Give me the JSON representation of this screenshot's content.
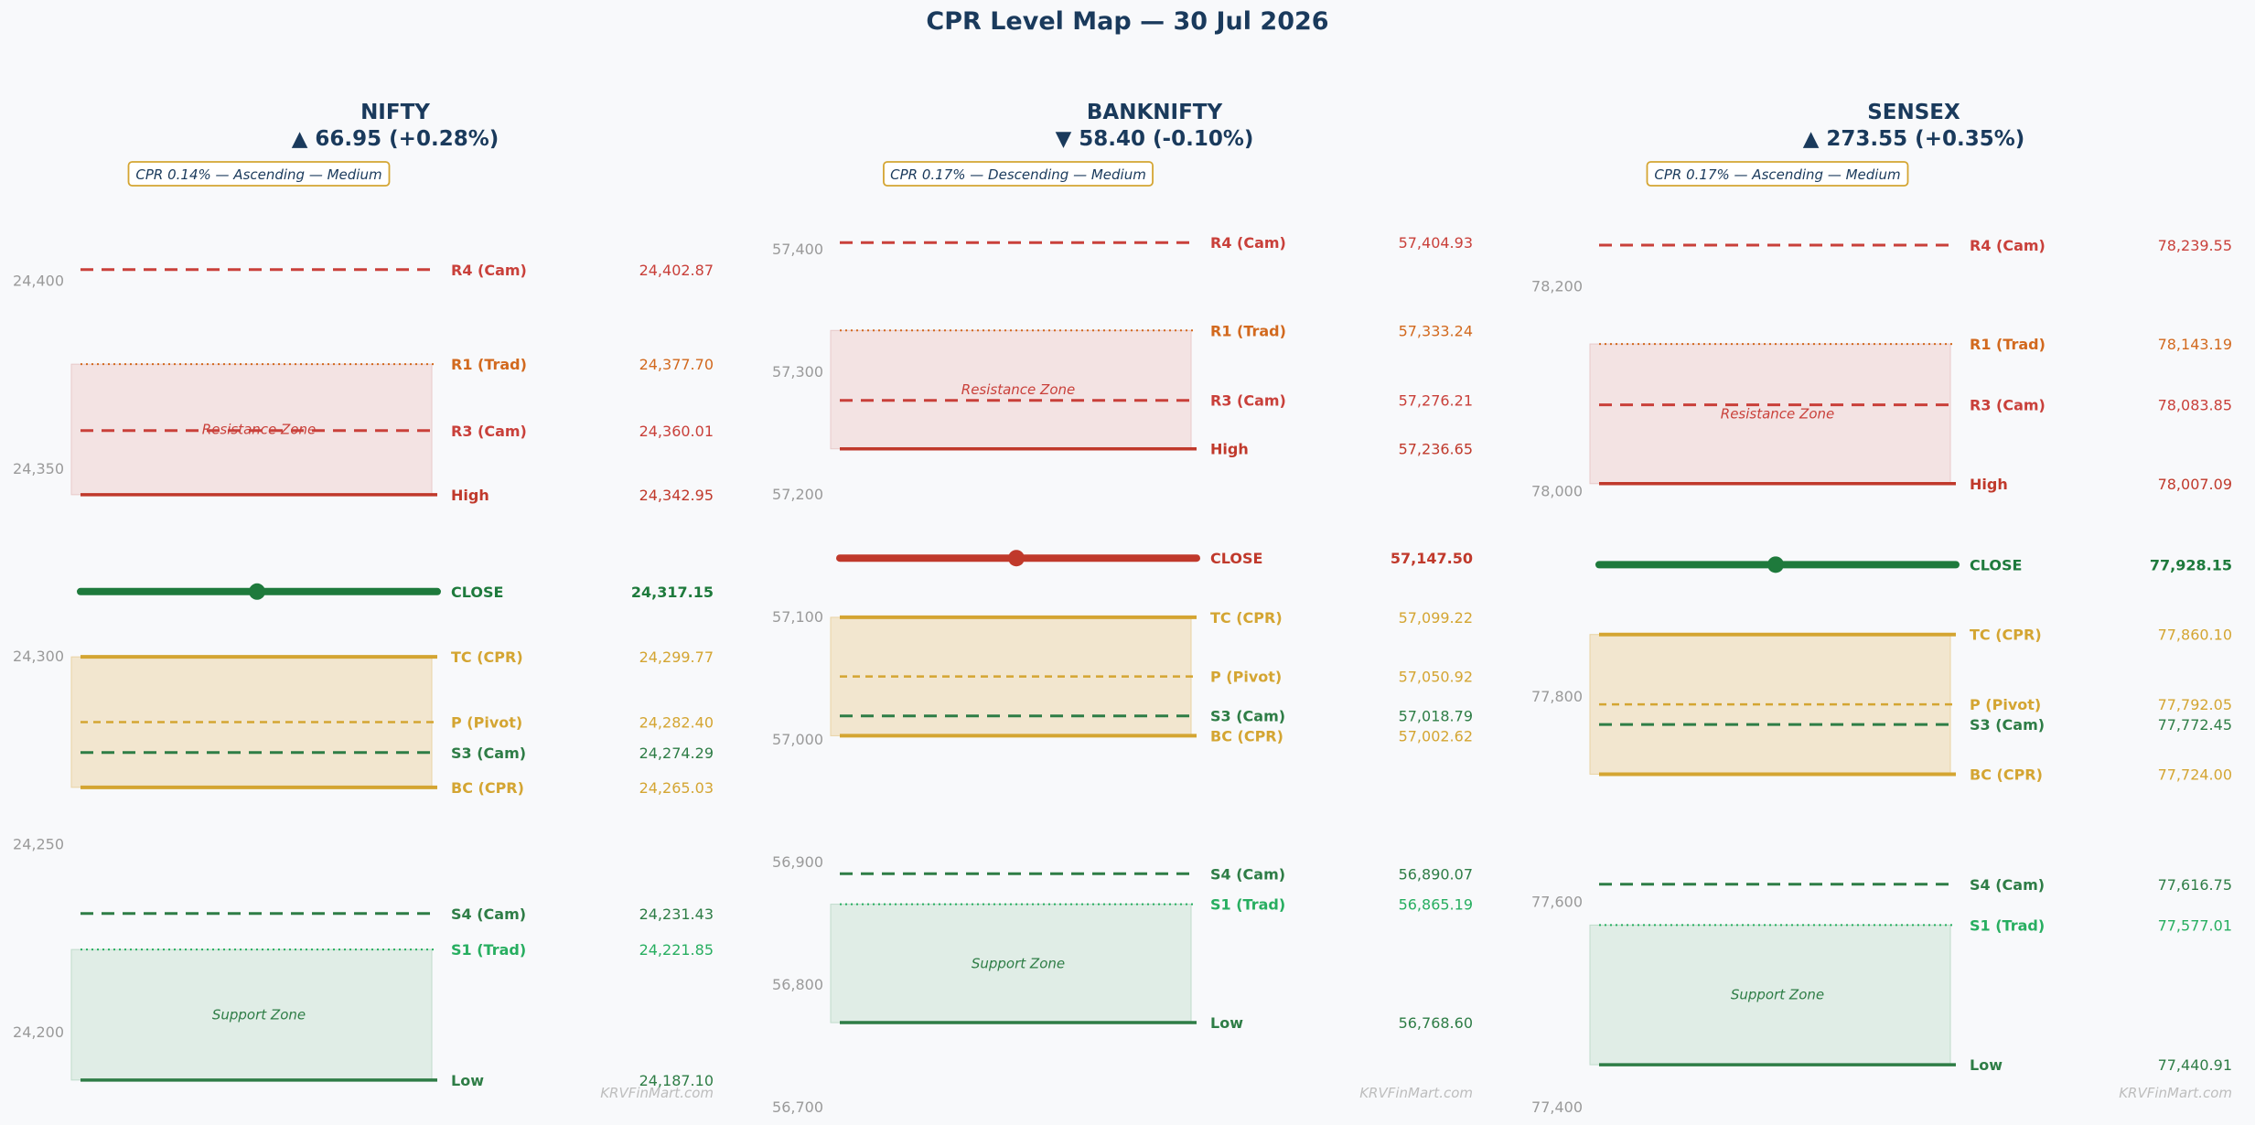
{
  "title": "CPR Level Map — 30 Jul 2026",
  "colors": {
    "cam_resistance": "#c9403a",
    "trad_resistance": "#d2691e",
    "high_low_red": "#c0392b",
    "cpr": "#d4a532",
    "cam_support": "#2e7d46",
    "trad_support": "#27ae60",
    "close_up": "#1e7a3c",
    "close_down": "#c0392b",
    "resistance_zone": "#f3e3e3",
    "cpr_zone": "#f2e6cf",
    "support_zone": "#e0ede6",
    "title": "#1a3a5c"
  },
  "chart_data": [
    {
      "type": "line",
      "index": "NIFTY",
      "change": "▲ 66.95 (+0.28%)",
      "badge": "CPR 0.14% — Ascending — Medium",
      "watermark": "KRVFinMart.com",
      "ylim": [
        24180,
        24415
      ],
      "yticks": [
        24200,
        24250,
        24300,
        24350,
        24400
      ],
      "ytick_labels": [
        "24,200",
        "24,250",
        "24,300",
        "24,350",
        "24,400"
      ],
      "zones": [
        {
          "label": "Resistance Zone",
          "from": 24342.95,
          "to": 24377.7,
          "kind": "resistance"
        },
        {
          "label": "",
          "from": 24265.03,
          "to": 24299.77,
          "kind": "cpr"
        },
        {
          "label": "Support Zone",
          "from": 24187.1,
          "to": 24221.85,
          "kind": "support"
        }
      ],
      "levels": [
        {
          "name": "R4 (Cam)",
          "value": 24402.87,
          "label": "24,402.87",
          "style": "cam_r"
        },
        {
          "name": "R1 (Trad)",
          "value": 24377.7,
          "label": "24,377.70",
          "style": "trad_r"
        },
        {
          "name": "R3 (Cam)",
          "value": 24360.01,
          "label": "24,360.01",
          "style": "cam_r"
        },
        {
          "name": "High",
          "value": 24342.95,
          "label": "24,342.95",
          "style": "high"
        },
        {
          "name": "CLOSE",
          "value": 24317.15,
          "label": "24,317.15",
          "style": "close_up"
        },
        {
          "name": "TC (CPR)",
          "value": 24299.77,
          "label": "24,299.77",
          "style": "cpr_edge"
        },
        {
          "name": "P (Pivot)",
          "value": 24282.4,
          "label": "24,282.40",
          "style": "pivot"
        },
        {
          "name": "S3 (Cam)",
          "value": 24274.29,
          "label": "24,274.29",
          "style": "cam_s"
        },
        {
          "name": "BC (CPR)",
          "value": 24265.03,
          "label": "24,265.03",
          "style": "cpr_edge"
        },
        {
          "name": "S4 (Cam)",
          "value": 24231.43,
          "label": "24,231.43",
          "style": "cam_s"
        },
        {
          "name": "S1 (Trad)",
          "value": 24221.85,
          "label": "24,221.85",
          "style": "trad_s"
        },
        {
          "name": "Low",
          "value": 24187.1,
          "label": "24,187.10",
          "style": "low"
        }
      ]
    },
    {
      "type": "line",
      "index": "BANKNIFTY",
      "change": "▼ 58.40 (-0.10%)",
      "badge": "CPR 0.17% — Descending — Medium",
      "watermark": "KRVFinMart.com",
      "ylim": [
        56700,
        57420
      ],
      "yticks": [
        56700,
        56800,
        56900,
        57000,
        57100,
        57200,
        57300,
        57400
      ],
      "ytick_labels": [
        "56,700",
        "56,800",
        "56,900",
        "57,000",
        "57,100",
        "57,200",
        "57,300",
        "57,400"
      ],
      "zones": [
        {
          "label": "Resistance Zone",
          "from": 57236.65,
          "to": 57333.24,
          "kind": "resistance"
        },
        {
          "label": "",
          "from": 57002.62,
          "to": 57099.22,
          "kind": "cpr"
        },
        {
          "label": "Support Zone",
          "from": 56768.6,
          "to": 56865.19,
          "kind": "support"
        }
      ],
      "levels": [
        {
          "name": "R4 (Cam)",
          "value": 57404.93,
          "label": "57,404.93",
          "style": "cam_r"
        },
        {
          "name": "R1 (Trad)",
          "value": 57333.24,
          "label": "57,333.24",
          "style": "trad_r"
        },
        {
          "name": "R3 (Cam)",
          "value": 57276.21,
          "label": "57,276.21",
          "style": "cam_r"
        },
        {
          "name": "High",
          "value": 57236.65,
          "label": "57,236.65",
          "style": "high"
        },
        {
          "name": "CLOSE",
          "value": 57147.5,
          "label": "57,147.50",
          "style": "close_down"
        },
        {
          "name": "TC (CPR)",
          "value": 57099.22,
          "label": "57,099.22",
          "style": "cpr_edge"
        },
        {
          "name": "P (Pivot)",
          "value": 57050.92,
          "label": "57,050.92",
          "style": "pivot"
        },
        {
          "name": "S3 (Cam)",
          "value": 57018.79,
          "label": "57,018.79",
          "style": "cam_s"
        },
        {
          "name": "BC (CPR)",
          "value": 57002.62,
          "label": "57,002.62",
          "style": "cpr_edge"
        },
        {
          "name": "S4 (Cam)",
          "value": 56890.07,
          "label": "56,890.07",
          "style": "cam_s"
        },
        {
          "name": "S1 (Trad)",
          "value": 56865.19,
          "label": "56,865.19",
          "style": "trad_s"
        },
        {
          "name": "Low",
          "value": 56768.6,
          "label": "56,768.60",
          "style": "low"
        }
      ]
    },
    {
      "type": "line",
      "index": "SENSEX",
      "change": "▲ 273.55 (+0.35%)",
      "badge": "CPR 0.17% — Ascending — Medium",
      "watermark": "KRVFinMart.com",
      "ylim": [
        77400,
        78260
      ],
      "yticks": [
        77400,
        77600,
        77800,
        78000,
        78200
      ],
      "ytick_labels": [
        "77,400",
        "77,600",
        "77,800",
        "78,000",
        "78,200"
      ],
      "zones": [
        {
          "label": "Resistance Zone",
          "from": 78007.09,
          "to": 78143.19,
          "kind": "resistance"
        },
        {
          "label": "",
          "from": 77724.0,
          "to": 77860.1,
          "kind": "cpr"
        },
        {
          "label": "Support Zone",
          "from": 77440.91,
          "to": 77577.01,
          "kind": "support"
        }
      ],
      "levels": [
        {
          "name": "R4 (Cam)",
          "value": 78239.55,
          "label": "78,239.55",
          "style": "cam_r"
        },
        {
          "name": "R1 (Trad)",
          "value": 78143.19,
          "label": "78,143.19",
          "style": "trad_r"
        },
        {
          "name": "R3 (Cam)",
          "value": 78083.85,
          "label": "78,083.85",
          "style": "cam_r"
        },
        {
          "name": "High",
          "value": 78007.09,
          "label": "78,007.09",
          "style": "high"
        },
        {
          "name": "CLOSE",
          "value": 77928.15,
          "label": "77,928.15",
          "style": "close_up"
        },
        {
          "name": "TC (CPR)",
          "value": 77860.1,
          "label": "77,860.10",
          "style": "cpr_edge"
        },
        {
          "name": "P (Pivot)",
          "value": 77792.05,
          "label": "77,792.05",
          "style": "pivot"
        },
        {
          "name": "S3 (Cam)",
          "value": 77772.45,
          "label": "77,772.45",
          "style": "cam_s"
        },
        {
          "name": "BC (CPR)",
          "value": 77724.0,
          "label": "77,724.00",
          "style": "cpr_edge"
        },
        {
          "name": "S4 (Cam)",
          "value": 77616.75,
          "label": "77,616.75",
          "style": "cam_s"
        },
        {
          "name": "S1 (Trad)",
          "value": 77577.01,
          "label": "77,577.01",
          "style": "trad_s"
        },
        {
          "name": "Low",
          "value": 77440.91,
          "label": "77,440.91",
          "style": "low"
        }
      ]
    }
  ]
}
